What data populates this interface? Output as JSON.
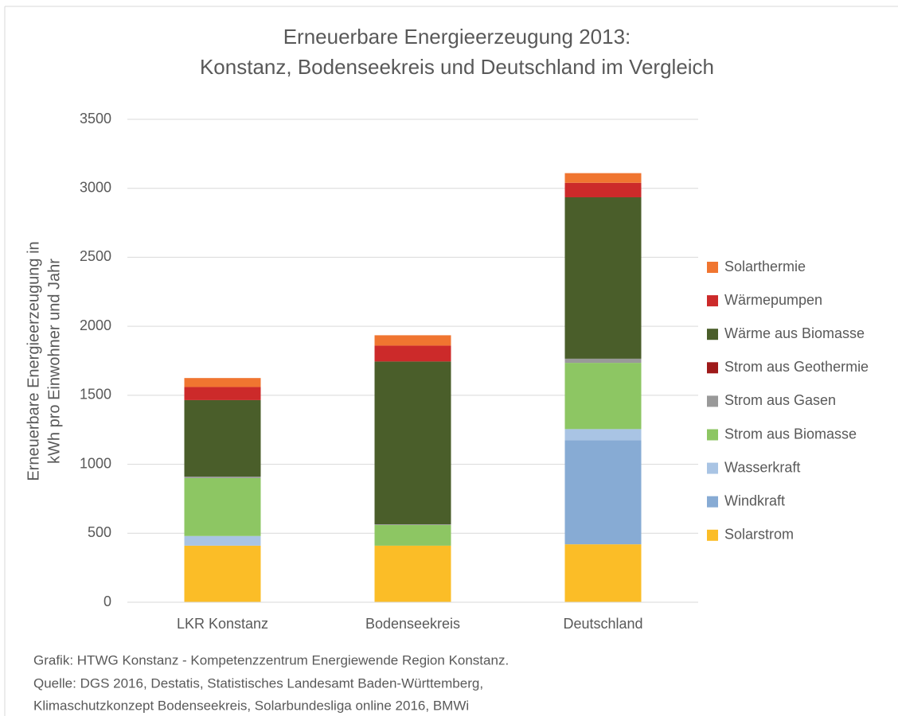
{
  "chart_data": {
    "type": "stacked_bar",
    "title": [
      "Erneuerbare Energieerzeugung 2013:",
      "Konstanz, Bodenseekreis und Deutschland im Vergleich"
    ],
    "ylabel": [
      "Erneuerbare Energieerzeugung in",
      "kWh pro Einwohner und Jahr"
    ],
    "categories": [
      "LKR Konstanz",
      "Bodenseekreis",
      "Deutschland"
    ],
    "series": [
      {
        "name": "Solarstrom",
        "color": "#fbbd27",
        "values": [
          410,
          410,
          420
        ]
      },
      {
        "name": "Windkraft",
        "color": "#87abd4",
        "values": [
          0,
          0,
          755
        ]
      },
      {
        "name": "Wasserkraft",
        "color": "#a9c4e4",
        "values": [
          70,
          0,
          80
        ]
      },
      {
        "name": "Strom aus Biomasse",
        "color": "#8dc663",
        "values": [
          420,
          150,
          480
        ]
      },
      {
        "name": "Strom aus Gasen",
        "color": "#999999",
        "values": [
          10,
          5,
          30
        ]
      },
      {
        "name": "Strom aus Geothermie",
        "color": "#9e1a1a",
        "values": [
          0,
          0,
          0
        ]
      },
      {
        "name": "Wärme aus Biomasse",
        "color": "#4a5e2a",
        "values": [
          555,
          1180,
          1170
        ]
      },
      {
        "name": "Wärmepumpen",
        "color": "#cc2a2a",
        "values": [
          95,
          115,
          105
        ]
      },
      {
        "name": "Solarthermie",
        "color": "#f07530",
        "values": [
          65,
          75,
          70
        ]
      }
    ],
    "ylim": [
      0,
      3500
    ],
    "yticks": [
      0,
      500,
      1000,
      1500,
      2000,
      2500,
      3000,
      3500
    ],
    "grid": true,
    "legend": "right",
    "source": [
      "Grafik: HTWG Konstanz - Kompetenzzentrum Energiewende Region Konstanz.",
      "Quelle: DGS 2016, Destatis, Statistisches Landesamt Baden-Württemberg,",
      "Klimaschutzkonzept Bodenseekreis, Solarbundesliga online 2016, BMWi"
    ]
  }
}
